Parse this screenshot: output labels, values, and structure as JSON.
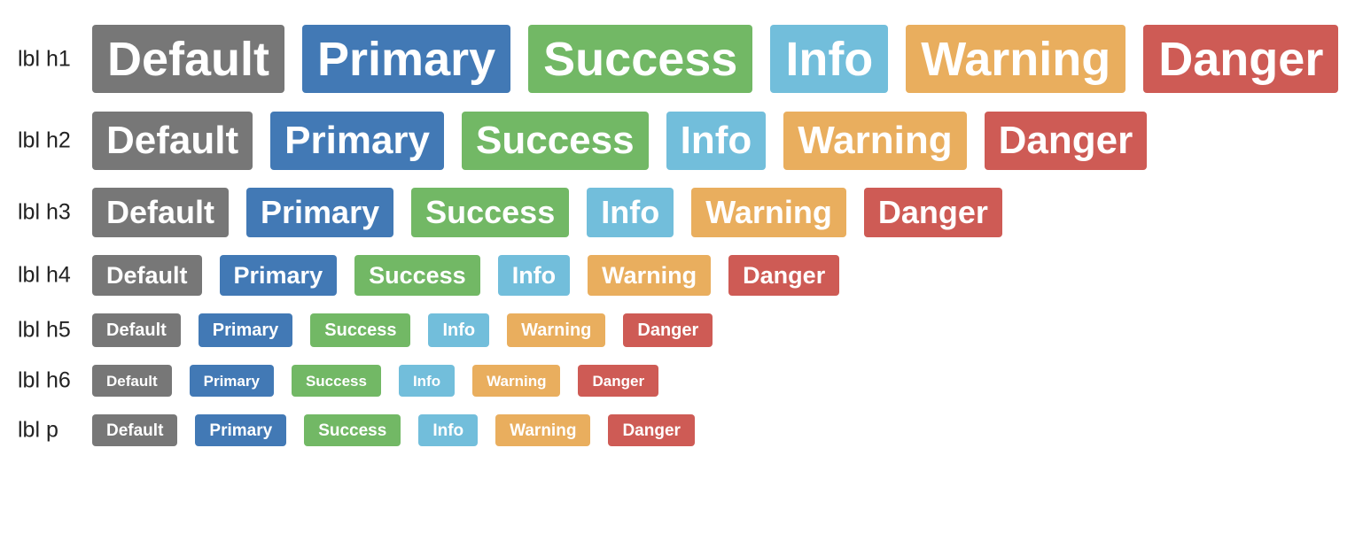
{
  "colors": {
    "default": "#777777",
    "primary": "#4279b5",
    "success": "#72b865",
    "info": "#72bedb",
    "warning": "#e9ae5e",
    "danger": "#ce5b55"
  },
  "rows": [
    {
      "label": "lbl h1",
      "badges": [
        "Default",
        "Primary",
        "Success",
        "Info",
        "Warning",
        "Danger"
      ]
    },
    {
      "label": "lbl h2",
      "badges": [
        "Default",
        "Primary",
        "Success",
        "Info",
        "Warning",
        "Danger"
      ]
    },
    {
      "label": "lbl h3",
      "badges": [
        "Default",
        "Primary",
        "Success",
        "Info",
        "Warning",
        "Danger"
      ]
    },
    {
      "label": "lbl h4",
      "badges": [
        "Default",
        "Primary",
        "Success",
        "Info",
        "Warning",
        "Danger"
      ]
    },
    {
      "label": "lbl h5",
      "badges": [
        "Default",
        "Primary",
        "Success",
        "Info",
        "Warning",
        "Danger"
      ]
    },
    {
      "label": "lbl h6",
      "badges": [
        "Default",
        "Primary",
        "Success",
        "Info",
        "Warning",
        "Danger"
      ]
    },
    {
      "label": "lbl p",
      "badges": [
        "Default",
        "Primary",
        "Success",
        "Info",
        "Warning",
        "Danger"
      ]
    }
  ]
}
